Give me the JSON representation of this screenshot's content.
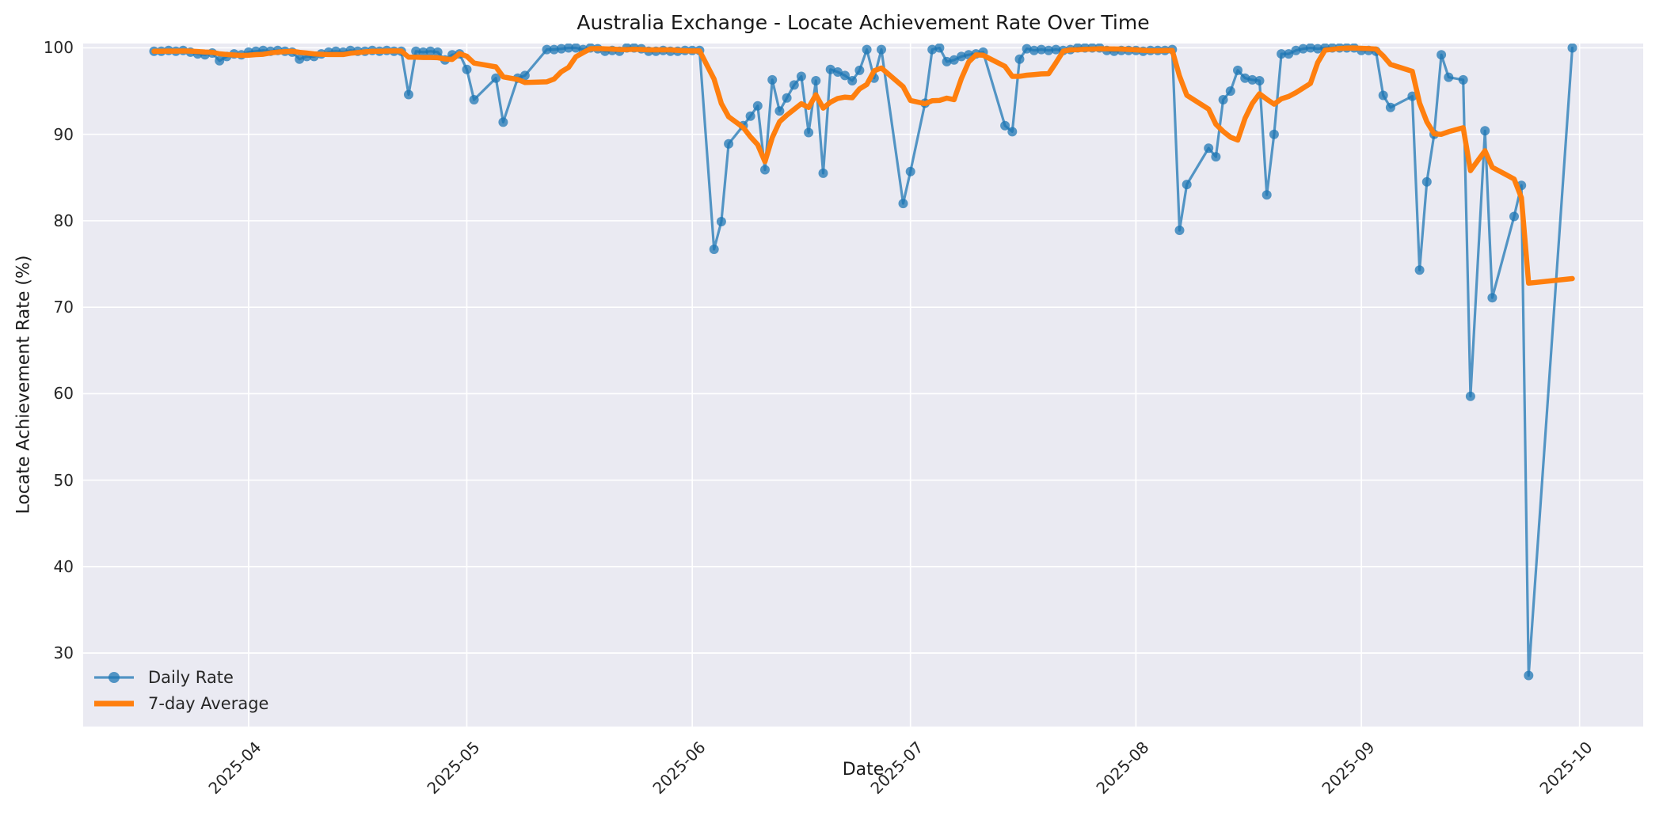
{
  "figure": {
    "title": "Australia Exchange - Locate Achievement Rate Over Time",
    "xlabel": "Date",
    "ylabel": "Locate Achievement Rate (%)",
    "background_color": "#ffffff",
    "axes_background_color": "#eaeaf2",
    "grid_color": "#ffffff",
    "text_color": "#262626"
  },
  "legend": {
    "position": "lower left",
    "items": [
      {
        "label": "Daily Rate",
        "color": "#1f77b4",
        "marker": "circle"
      },
      {
        "label": "7-day Average",
        "color": "#ff7f0e",
        "marker": "line"
      }
    ]
  },
  "chart_data": {
    "type": "line",
    "title": "Australia Exchange - Locate Achievement Rate Over Time",
    "xlabel": "Date",
    "ylabel": "Locate Achievement Rate (%)",
    "grid": true,
    "ylim": [
      21.5,
      100.5
    ],
    "y_ticks": [
      30,
      40,
      50,
      60,
      70,
      80,
      90,
      100
    ],
    "x_ticks": [
      {
        "date": "2025-04-01",
        "label": "2025-04"
      },
      {
        "date": "2025-05-01",
        "label": "2025-05"
      },
      {
        "date": "2025-06-01",
        "label": "2025-06"
      },
      {
        "date": "2025-07-01",
        "label": "2025-07"
      },
      {
        "date": "2025-08-01",
        "label": "2025-08"
      },
      {
        "date": "2025-09-01",
        "label": "2025-09"
      },
      {
        "date": "2025-10-01",
        "label": "2025-10"
      }
    ],
    "x_margin_frac": 0.05,
    "series": [
      {
        "name": "Daily Rate",
        "color": "#1f77b4",
        "opacity": 0.75,
        "line_width": 3.2,
        "marker": "circle",
        "marker_radius": 6,
        "points": [
          [
            "2025-03-19",
            99.6
          ],
          [
            "2025-03-20",
            99.6
          ],
          [
            "2025-03-21",
            99.7
          ],
          [
            "2025-03-22",
            99.6
          ],
          [
            "2025-03-23",
            99.7
          ],
          [
            "2025-03-24",
            99.5
          ],
          [
            "2025-03-25",
            99.3
          ],
          [
            "2025-03-26",
            99.2
          ],
          [
            "2025-03-27",
            99.4
          ],
          [
            "2025-03-28",
            98.5
          ],
          [
            "2025-03-29",
            99.0
          ],
          [
            "2025-03-30",
            99.3
          ],
          [
            "2025-03-31",
            99.2
          ],
          [
            "2025-04-01",
            99.5
          ],
          [
            "2025-04-02",
            99.6
          ],
          [
            "2025-04-03",
            99.7
          ],
          [
            "2025-04-04",
            99.6
          ],
          [
            "2025-04-05",
            99.7
          ],
          [
            "2025-04-06",
            99.6
          ],
          [
            "2025-04-07",
            99.5
          ],
          [
            "2025-04-08",
            98.7
          ],
          [
            "2025-04-09",
            99.0
          ],
          [
            "2025-04-10",
            99.0
          ],
          [
            "2025-04-11",
            99.3
          ],
          [
            "2025-04-12",
            99.5
          ],
          [
            "2025-04-13",
            99.6
          ],
          [
            "2025-04-14",
            99.5
          ],
          [
            "2025-04-15",
            99.7
          ],
          [
            "2025-04-16",
            99.6
          ],
          [
            "2025-04-17",
            99.6
          ],
          [
            "2025-04-18",
            99.7
          ],
          [
            "2025-04-19",
            99.6
          ],
          [
            "2025-04-20",
            99.7
          ],
          [
            "2025-04-21",
            99.6
          ],
          [
            "2025-04-22",
            99.6
          ],
          [
            "2025-04-23",
            94.6
          ],
          [
            "2025-04-24",
            99.6
          ],
          [
            "2025-04-25",
            99.5
          ],
          [
            "2025-04-26",
            99.6
          ],
          [
            "2025-04-27",
            99.5
          ],
          [
            "2025-04-28",
            98.6
          ],
          [
            "2025-04-29",
            99.2
          ],
          [
            "2025-04-30",
            99.3
          ],
          [
            "2025-05-01",
            97.5
          ],
          [
            "2025-05-02",
            94.0
          ],
          [
            "2025-05-05",
            96.5
          ],
          [
            "2025-05-06",
            91.4
          ],
          [
            "2025-05-08",
            96.5
          ],
          [
            "2025-05-09",
            96.8
          ],
          [
            "2025-05-12",
            99.8
          ],
          [
            "2025-05-13",
            99.8
          ],
          [
            "2025-05-14",
            99.9
          ],
          [
            "2025-05-15",
            100.0
          ],
          [
            "2025-05-16",
            100.0
          ],
          [
            "2025-05-17",
            99.8
          ],
          [
            "2025-05-18",
            100.0
          ],
          [
            "2025-05-19",
            99.9
          ],
          [
            "2025-05-20",
            99.6
          ],
          [
            "2025-05-21",
            99.7
          ],
          [
            "2025-05-22",
            99.6
          ],
          [
            "2025-05-23",
            100.0
          ],
          [
            "2025-05-24",
            100.0
          ],
          [
            "2025-05-25",
            99.9
          ],
          [
            "2025-05-26",
            99.6
          ],
          [
            "2025-05-27",
            99.6
          ],
          [
            "2025-05-28",
            99.7
          ],
          [
            "2025-05-29",
            99.6
          ],
          [
            "2025-05-30",
            99.6
          ],
          [
            "2025-05-31",
            99.7
          ],
          [
            "2025-06-01",
            99.7
          ],
          [
            "2025-06-02",
            99.7
          ],
          [
            "2025-06-04",
            76.7
          ],
          [
            "2025-06-05",
            79.9
          ],
          [
            "2025-06-06",
            88.9
          ],
          [
            "2025-06-08",
            91.0
          ],
          [
            "2025-06-09",
            92.1
          ],
          [
            "2025-06-10",
            93.3
          ],
          [
            "2025-06-11",
            85.9
          ],
          [
            "2025-06-12",
            96.3
          ],
          [
            "2025-06-13",
            92.7
          ],
          [
            "2025-06-14",
            94.2
          ],
          [
            "2025-06-15",
            95.7
          ],
          [
            "2025-06-16",
            96.7
          ],
          [
            "2025-06-17",
            90.2
          ],
          [
            "2025-06-18",
            96.2
          ],
          [
            "2025-06-19",
            85.5
          ],
          [
            "2025-06-20",
            97.5
          ],
          [
            "2025-06-21",
            97.2
          ],
          [
            "2025-06-22",
            96.8
          ],
          [
            "2025-06-23",
            96.2
          ],
          [
            "2025-06-24",
            97.4
          ],
          [
            "2025-06-25",
            99.8
          ],
          [
            "2025-06-26",
            96.5
          ],
          [
            "2025-06-27",
            99.8
          ],
          [
            "2025-06-30",
            82.0
          ],
          [
            "2025-07-01",
            85.7
          ],
          [
            "2025-07-03",
            93.6
          ],
          [
            "2025-07-04",
            99.8
          ],
          [
            "2025-07-05",
            100.0
          ],
          [
            "2025-07-06",
            98.4
          ],
          [
            "2025-07-07",
            98.6
          ],
          [
            "2025-07-08",
            99.0
          ],
          [
            "2025-07-09",
            99.2
          ],
          [
            "2025-07-10",
            99.3
          ],
          [
            "2025-07-11",
            99.5
          ],
          [
            "2025-07-14",
            91.0
          ],
          [
            "2025-07-15",
            90.3
          ],
          [
            "2025-07-16",
            98.7
          ],
          [
            "2025-07-17",
            99.9
          ],
          [
            "2025-07-18",
            99.7
          ],
          [
            "2025-07-19",
            99.8
          ],
          [
            "2025-07-20",
            99.7
          ],
          [
            "2025-07-21",
            99.8
          ],
          [
            "2025-07-22",
            99.7
          ],
          [
            "2025-07-23",
            99.8
          ],
          [
            "2025-07-24",
            100.0
          ],
          [
            "2025-07-25",
            100.0
          ],
          [
            "2025-07-26",
            100.0
          ],
          [
            "2025-07-27",
            100.0
          ],
          [
            "2025-07-28",
            99.7
          ],
          [
            "2025-07-29",
            99.6
          ],
          [
            "2025-07-30",
            99.7
          ],
          [
            "2025-07-31",
            99.7
          ],
          [
            "2025-08-01",
            99.7
          ],
          [
            "2025-08-02",
            99.6
          ],
          [
            "2025-08-03",
            99.7
          ],
          [
            "2025-08-04",
            99.7
          ],
          [
            "2025-08-05",
            99.7
          ],
          [
            "2025-08-06",
            99.8
          ],
          [
            "2025-08-07",
            78.9
          ],
          [
            "2025-08-08",
            84.2
          ],
          [
            "2025-08-11",
            88.4
          ],
          [
            "2025-08-12",
            87.4
          ],
          [
            "2025-08-13",
            94.0
          ],
          [
            "2025-08-14",
            95.0
          ],
          [
            "2025-08-15",
            97.4
          ],
          [
            "2025-08-16",
            96.5
          ],
          [
            "2025-08-17",
            96.3
          ],
          [
            "2025-08-18",
            96.2
          ],
          [
            "2025-08-19",
            83.0
          ],
          [
            "2025-08-20",
            90.0
          ],
          [
            "2025-08-21",
            99.3
          ],
          [
            "2025-08-22",
            99.3
          ],
          [
            "2025-08-23",
            99.7
          ],
          [
            "2025-08-24",
            99.9
          ],
          [
            "2025-08-25",
            100.0
          ],
          [
            "2025-08-26",
            99.9
          ],
          [
            "2025-08-27",
            100.0
          ],
          [
            "2025-08-28",
            100.0
          ],
          [
            "2025-08-29",
            100.0
          ],
          [
            "2025-08-30",
            100.0
          ],
          [
            "2025-08-31",
            100.0
          ],
          [
            "2025-09-01",
            99.7
          ],
          [
            "2025-09-02",
            99.7
          ],
          [
            "2025-09-03",
            99.6
          ],
          [
            "2025-09-04",
            94.5
          ],
          [
            "2025-09-05",
            93.1
          ],
          [
            "2025-09-08",
            94.4
          ],
          [
            "2025-09-09",
            74.3
          ],
          [
            "2025-09-10",
            84.5
          ],
          [
            "2025-09-11",
            90.0
          ],
          [
            "2025-09-12",
            99.2
          ],
          [
            "2025-09-13",
            96.6
          ],
          [
            "2025-09-15",
            96.3
          ],
          [
            "2025-09-16",
            59.7
          ],
          [
            "2025-09-18",
            90.4
          ],
          [
            "2025-09-19",
            71.1
          ],
          [
            "2025-09-22",
            80.5
          ],
          [
            "2025-09-23",
            84.1
          ],
          [
            "2025-09-24",
            27.4
          ],
          [
            "2025-09-30",
            100.0
          ]
        ]
      },
      {
        "name": "7-day Average",
        "color": "#ff7f0e",
        "opacity": 1.0,
        "line_width": 6.5,
        "marker": "none",
        "derived": "rolling mean of last 7 points of Daily Rate (min_periods=1)",
        "window": 7
      }
    ]
  }
}
